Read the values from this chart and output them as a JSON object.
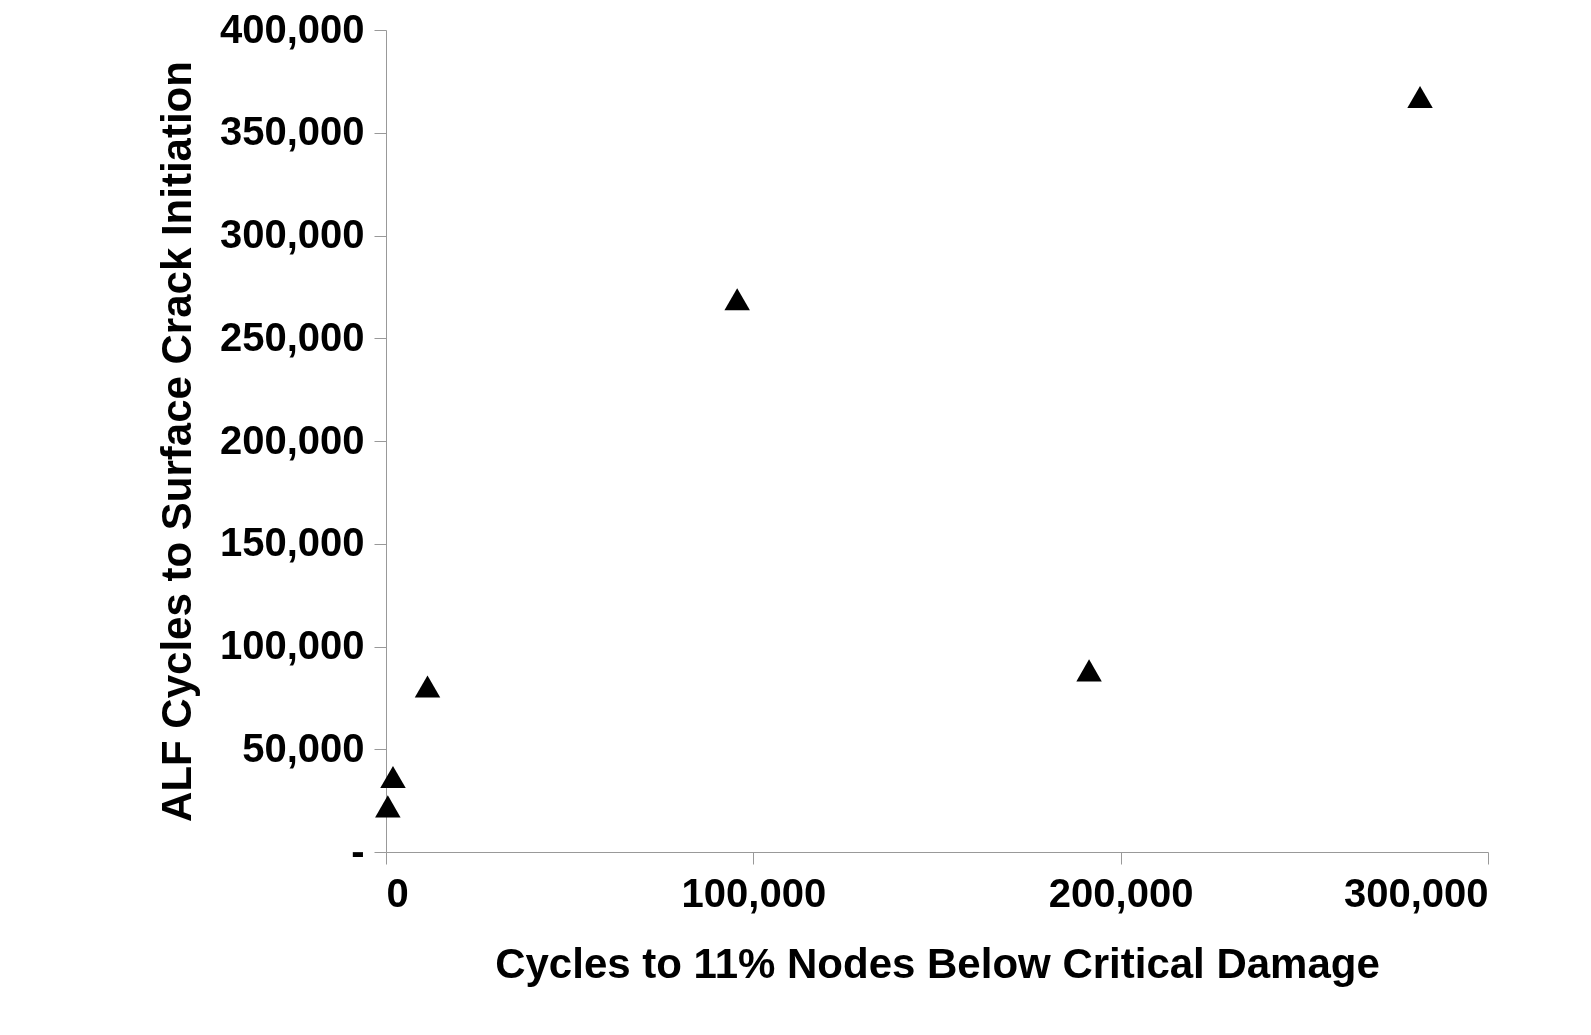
{
  "chart_data": {
    "type": "scatter",
    "xlabel": "Cycles to 11% Nodes  Below Critical Damage",
    "ylabel": "ALF Cycles to Surface Crack Initiation",
    "x": [
      500,
      1900,
      11300,
      95600,
      191400,
      281500
    ],
    "series": [
      {
        "color": "#000000",
        "values": [
          22200,
          36500,
          80500,
          269000,
          88400,
          367400
        ]
      }
    ],
    "xlim": [
      0,
      300000
    ],
    "xticks": [
      {
        "value": 0,
        "label": "0"
      },
      {
        "value": 100000,
        "label": "100,000"
      },
      {
        "value": 200000,
        "label": "200,000"
      },
      {
        "value": 300000,
        "label": "300,000"
      }
    ],
    "ylim": [
      0,
      400000
    ],
    "yticks": [
      {
        "value": 0,
        "label": "-"
      },
      {
        "value": 50000,
        "label": "50,000"
      },
      {
        "value": 100000,
        "label": "100,000"
      },
      {
        "value": 150000,
        "label": "150,000"
      },
      {
        "value": 200000,
        "label": "200,000"
      },
      {
        "value": 250000,
        "label": "250,000"
      },
      {
        "value": 300000,
        "label": "300,000"
      },
      {
        "value": 350000,
        "label": "350,000"
      },
      {
        "value": 400000,
        "label": "400,000"
      }
    ],
    "marker": "triangle",
    "grid": false
  }
}
